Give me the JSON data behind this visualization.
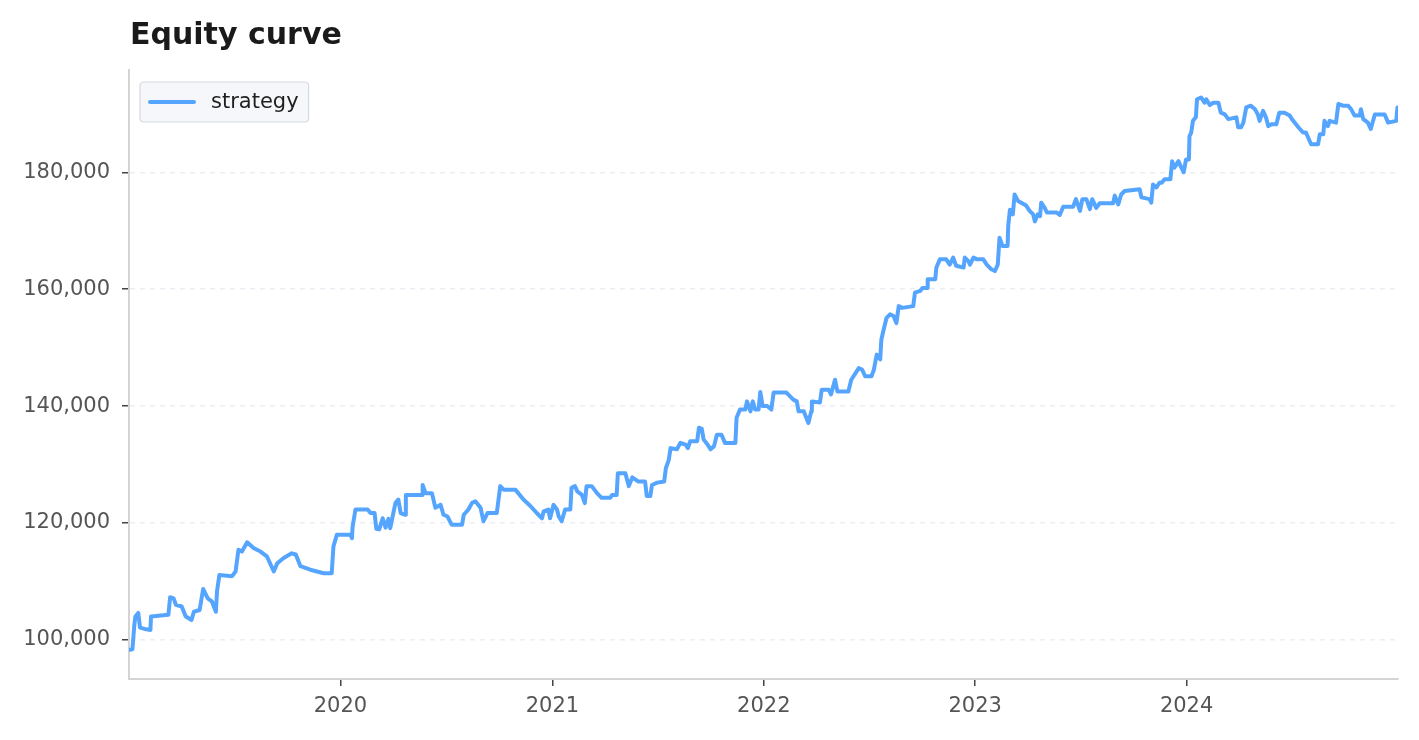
{
  "chart_data": {
    "type": "line",
    "title": "Equity curve",
    "x": [
      "2019-01-02",
      "2019-01-07",
      "2019-01-10",
      "2019-01-12",
      "2019-01-17",
      "2019-01-20",
      "2019-01-31",
      "2019-02-07",
      "2019-02-08",
      "2019-03-10",
      "2019-03-13",
      "2019-03-19",
      "2019-03-23",
      "2019-04-02",
      "2019-04-09",
      "2019-04-19",
      "2019-04-23",
      "2019-05-03",
      "2019-05-09",
      "2019-05-17",
      "2019-05-24",
      "2019-05-31",
      "2019-06-02",
      "2019-06-06",
      "2019-06-28",
      "2019-07-04",
      "2019-07-09",
      "2019-07-15",
      "2019-07-24",
      "2019-08-04",
      "2019-08-16",
      "2019-08-27",
      "2019-09-08",
      "2019-09-14",
      "2019-09-25",
      "2019-10-09",
      "2019-10-16",
      "2019-10-24",
      "2019-11-10",
      "2019-12-03",
      "2019-12-17",
      "2019-12-20",
      "2019-12-26",
      "2020-01-18",
      "2020-01-21",
      "2020-01-22",
      "2020-01-27",
      "2020-02-17",
      "2020-02-22",
      "2020-02-29",
      "2020-03-03",
      "2020-03-08",
      "2020-03-14",
      "2020-03-19",
      "2020-03-24",
      "2020-03-27",
      "2020-04-05",
      "2020-04-10",
      "2020-04-14",
      "2020-04-22",
      "2020-04-23",
      "2020-05-21",
      "2020-05-22",
      "2020-05-27",
      "2020-06-07",
      "2020-06-13",
      "2020-06-22",
      "2020-06-27",
      "2020-07-04",
      "2020-07-11",
      "2020-07-29",
      "2020-08-01",
      "2020-08-09",
      "2020-08-15",
      "2020-08-21",
      "2020-08-30",
      "2020-09-04",
      "2020-09-11",
      "2020-09-27",
      "2020-10-03",
      "2020-10-09",
      "2020-10-29",
      "2020-11-03",
      "2020-11-12",
      "2020-11-24",
      "2020-12-05",
      "2020-12-14",
      "2020-12-17",
      "2020-12-25",
      "2020-12-28",
      "2021-01-03",
      "2021-01-09",
      "2021-01-12",
      "2021-01-17",
      "2021-01-23",
      "2021-02-01",
      "2021-02-03",
      "2021-02-09",
      "2021-02-13",
      "2021-02-21",
      "2021-02-26",
      "2021-03-01",
      "2021-03-10",
      "2021-03-19",
      "2021-03-27",
      "2021-04-11",
      "2021-04-14",
      "2021-04-22",
      "2021-04-24",
      "2021-05-07",
      "2021-05-13",
      "2021-05-19",
      "2021-05-29",
      "2021-06-10",
      "2021-06-13",
      "2021-06-19",
      "2021-06-22",
      "2021-07-01",
      "2021-07-13",
      "2021-07-16",
      "2021-07-21",
      "2021-07-24",
      "2021-08-04",
      "2021-08-10",
      "2021-08-19",
      "2021-08-23",
      "2021-08-27",
      "2021-09-08",
      "2021-09-11",
      "2021-09-16",
      "2021-09-19",
      "2021-09-26",
      "2021-10-01",
      "2021-10-07",
      "2021-10-12",
      "2021-10-20",
      "2021-10-26",
      "2021-11-13",
      "2021-11-15",
      "2021-11-21",
      "2021-11-30",
      "2021-12-03",
      "2021-12-09",
      "2021-12-13",
      "2021-12-17",
      "2021-12-23",
      "2021-12-26",
      "2021-12-30",
      "2022-01-07",
      "2022-01-14",
      "2022-01-18",
      "2022-02-09",
      "2022-02-15",
      "2022-02-21",
      "2022-02-27",
      "2022-03-02",
      "2022-03-11",
      "2022-03-19",
      "2022-03-24",
      "2022-03-25",
      "2022-04-08",
      "2022-04-11",
      "2022-04-23",
      "2022-04-27",
      "2022-05-04",
      "2022-05-08",
      "2022-05-27",
      "2022-06-01",
      "2022-06-14",
      "2022-06-20",
      "2022-06-25",
      "2022-07-06",
      "2022-07-10",
      "2022-07-15",
      "2022-07-21",
      "2022-07-23",
      "2022-07-27",
      "2022-08-01",
      "2022-08-07",
      "2022-08-13",
      "2022-08-18",
      "2022-08-22",
      "2022-08-28",
      "2022-09-16",
      "2022-09-19",
      "2022-09-28",
      "2022-10-02",
      "2022-10-10",
      "2022-10-11",
      "2022-10-24",
      "2022-10-26",
      "2022-11-01",
      "2022-11-12",
      "2022-11-18",
      "2022-11-24",
      "2022-11-29",
      "2022-12-12",
      "2022-12-14",
      "2022-12-20",
      "2022-12-23",
      "2022-12-29",
      "2023-01-04",
      "2023-01-15",
      "2023-01-21",
      "2023-01-29",
      "2023-02-04",
      "2023-02-09",
      "2023-02-12",
      "2023-02-17",
      "2023-02-26",
      "2023-02-27",
      "2023-03-02",
      "2023-03-07",
      "2023-03-10",
      "2023-03-16",
      "2023-03-30",
      "2023-04-05",
      "2023-04-11",
      "2023-04-14",
      "2023-04-19",
      "2023-04-23",
      "2023-04-25",
      "2023-05-01",
      "2023-05-05",
      "2023-05-22",
      "2023-05-27",
      "2023-06-02",
      "2023-06-19",
      "2023-06-24",
      "2023-07-01",
      "2023-07-05",
      "2023-07-12",
      "2023-07-18",
      "2023-07-22",
      "2023-07-29",
      "2023-08-04",
      "2023-08-27",
      "2023-08-30",
      "2023-09-05",
      "2023-09-10",
      "2023-09-16",
      "2023-10-12",
      "2023-10-15",
      "2023-10-29",
      "2023-11-01",
      "2023-11-04",
      "2023-11-10",
      "2023-11-15",
      "2023-11-19",
      "2023-11-24",
      "2023-12-04",
      "2023-12-07",
      "2023-12-11",
      "2023-12-18",
      "2023-12-23",
      "2023-12-27",
      "2023-12-31",
      "2024-01-05",
      "2024-01-06",
      "2024-01-09",
      "2024-01-12",
      "2024-01-17",
      "2024-01-19",
      "2024-01-26",
      "2024-02-01",
      "2024-02-04",
      "2024-02-10",
      "2024-02-16",
      "2024-02-25",
      "2024-02-29",
      "2024-03-07",
      "2024-03-13",
      "2024-03-27",
      "2024-03-30",
      "2024-04-04",
      "2024-04-08",
      "2024-04-13",
      "2024-04-21",
      "2024-04-28",
      "2024-05-03",
      "2024-05-06",
      "2024-05-12",
      "2024-05-17",
      "2024-05-21",
      "2024-05-26",
      "2024-06-04",
      "2024-06-09",
      "2024-06-18",
      "2024-06-27",
      "2024-07-03",
      "2024-07-12",
      "2024-07-20",
      "2024-07-25",
      "2024-08-03",
      "2024-08-15",
      "2024-08-18",
      "2024-08-24",
      "2024-08-26",
      "2024-09-01",
      "2024-09-04",
      "2024-09-15",
      "2024-09-19",
      "2024-09-27",
      "2024-10-06",
      "2024-10-11",
      "2024-10-17",
      "2024-10-26",
      "2024-10-28",
      "2024-11-01",
      "2024-11-09",
      "2024-11-14",
      "2024-11-21",
      "2024-12-08",
      "2024-12-14",
      "2024-12-28",
      "2024-12-30"
    ],
    "series": [
      {
        "name": "strategy",
        "color": "#55a5ff",
        "values": [
          98300,
          98400,
          102300,
          104000,
          104600,
          102100,
          101800,
          101700,
          104000,
          104300,
          107300,
          107100,
          106000,
          105700,
          104000,
          103400,
          104800,
          105100,
          108700,
          107100,
          106600,
          104800,
          108300,
          111100,
          110900,
          111700,
          115400,
          115100,
          116700,
          115700,
          115100,
          114300,
          111700,
          113100,
          114000,
          114800,
          114600,
          112600,
          112000,
          111400,
          111400,
          116000,
          118000,
          118000,
          117400,
          119300,
          122300,
          122300,
          121700,
          121700,
          119000,
          118900,
          120800,
          119200,
          120700,
          119100,
          123400,
          124000,
          121700,
          121400,
          124800,
          124800,
          126500,
          125100,
          125100,
          122600,
          123100,
          121400,
          121100,
          119700,
          119700,
          121400,
          122300,
          123400,
          123700,
          122600,
          120300,
          121700,
          121700,
          126300,
          125700,
          125700,
          125100,
          124000,
          122900,
          121700,
          120800,
          122000,
          122300,
          120800,
          123100,
          122300,
          121100,
          120300,
          122300,
          122300,
          126000,
          126300,
          125400,
          124800,
          123400,
          126300,
          126300,
          125100,
          124300,
          124300,
          124800,
          124800,
          128500,
          128500,
          126300,
          127800,
          127100,
          127100,
          124600,
          124600,
          126500,
          126900,
          127100,
          129400,
          130800,
          132800,
          132600,
          133700,
          133400,
          132800,
          134000,
          134000,
          136300,
          136100,
          134300,
          133400,
          132600,
          133100,
          135100,
          135100,
          133700,
          133700,
          138000,
          139400,
          139400,
          140800,
          139100,
          140800,
          139400,
          139400,
          142400,
          140000,
          140000,
          139400,
          142300,
          142300,
          141700,
          141100,
          140800,
          139100,
          139100,
          137100,
          139100,
          140800,
          140600,
          142800,
          142800,
          142000,
          144500,
          142500,
          142500,
          144500,
          146500,
          146200,
          145100,
          145100,
          146200,
          148800,
          148000,
          151400,
          153100,
          155100,
          155700,
          155400,
          154200,
          157100,
          156800,
          157100,
          159400,
          159700,
          160200,
          160200,
          161700,
          161700,
          163700,
          165100,
          165100,
          164200,
          165400,
          164000,
          163700,
          165400,
          164800,
          164200,
          165400,
          165100,
          165100,
          164200,
          163400,
          163100,
          164200,
          168800,
          167400,
          167400,
          170800,
          173600,
          172800,
          176200,
          175100,
          174300,
          173400,
          172800,
          171600,
          172800,
          172500,
          174800,
          173900,
          173100,
          173100,
          172700,
          174100,
          174100,
          175400,
          173400,
          175400,
          175400,
          173700,
          175400,
          173900,
          174700,
          174700,
          176000,
          174500,
          176200,
          176800,
          177100,
          175700,
          175400,
          174800,
          177900,
          177400,
          178200,
          178200,
          178800,
          178800,
          181900,
          180800,
          181900,
          180800,
          180000,
          182200,
          182200,
          186200,
          186800,
          188800,
          189400,
          192500,
          192800,
          191900,
          192500,
          191500,
          191900,
          191900,
          190200,
          189900,
          189100,
          189400,
          187700,
          187700,
          188500,
          191100,
          191400,
          190800,
          189900,
          188800,
          190500,
          189400,
          187900,
          188200,
          188200,
          190200,
          190200,
          189700,
          188800,
          187700,
          186800,
          186800,
          184800,
          184800,
          186500,
          186500,
          188800,
          187900,
          188800,
          188500,
          191700,
          191400,
          191400,
          190800,
          189700,
          189700,
          190800,
          189100,
          188500,
          187400,
          189900,
          189900,
          188500,
          188800,
          191100
        ]
      }
    ],
    "xlim": [
      "2019-01-01",
      "2024-12-31"
    ],
    "xticks": [
      {
        "value": "2020-01-01",
        "label": "2020"
      },
      {
        "value": "2021-01-01",
        "label": "2021"
      },
      {
        "value": "2022-01-01",
        "label": "2022"
      },
      {
        "value": "2023-01-01",
        "label": "2023"
      },
      {
        "value": "2024-01-01",
        "label": "2024"
      }
    ],
    "ylim": [
      93300,
      197500
    ],
    "yticks": [
      {
        "value": 100000,
        "label": "100,000"
      },
      {
        "value": 120000,
        "label": "120,000"
      },
      {
        "value": 140000,
        "label": "140,000"
      },
      {
        "value": 160000,
        "label": "160,000"
      },
      {
        "value": 180000,
        "label": "180,000"
      }
    ],
    "grid": "y",
    "legend": "top left",
    "marker": "none",
    "line_style": "solid"
  }
}
